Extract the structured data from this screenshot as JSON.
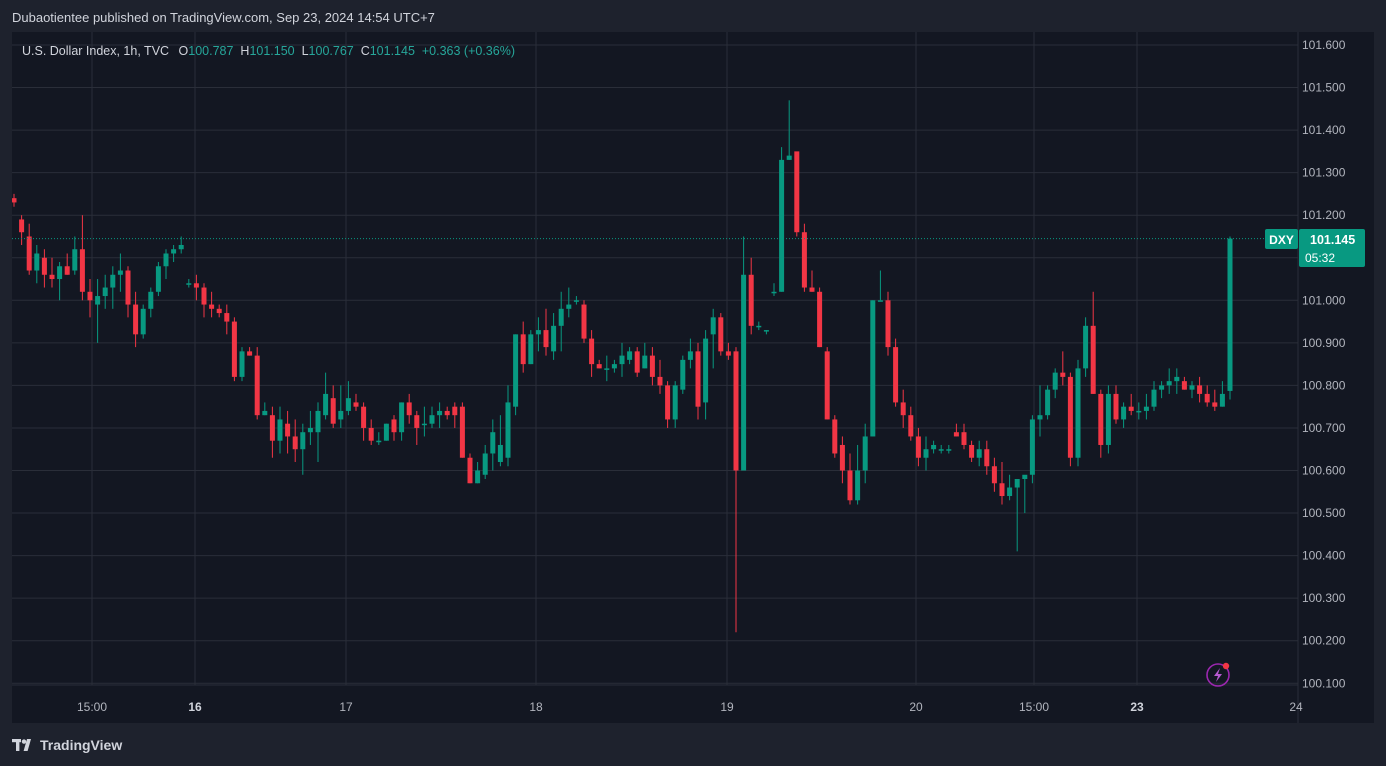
{
  "caption": "Dubaotientee published on TradingView.com, Sep 23, 2024 14:54 UTC+7",
  "legend": {
    "symbol": "U.S. Dollar Index, 1h, TVC",
    "o_label": "O",
    "o_value": "100.787",
    "h_label": "H",
    "h_value": "101.150",
    "l_label": "L",
    "l_value": "100.767",
    "c_label": "C",
    "c_value": "101.145",
    "change": "+0.363 (+0.36%)"
  },
  "price_tag": {
    "symbol": "DXY",
    "price": "101.145",
    "countdown": "05:32"
  },
  "brand": "TradingView",
  "icons": [
    "tradingview-logo-icon",
    "lightning-icon"
  ],
  "colors": {
    "up": "#089981",
    "down": "#f23645",
    "background": "#131722",
    "outer": "#1e222d",
    "grid": "#2a2e39",
    "text": "#b2b5be"
  },
  "chart_data": {
    "type": "candlestick",
    "title": "U.S. Dollar Index, 1h, TVC",
    "ylim": [
      100.1,
      101.65
    ],
    "y_ticks": [
      "101.600",
      "101.500",
      "101.400",
      "101.300",
      "101.200",
      "101.100",
      "101.000",
      "100.900",
      "100.800",
      "100.700",
      "100.600",
      "100.500",
      "100.400",
      "100.300",
      "100.200",
      "100.100"
    ],
    "x_ticks": [
      {
        "label": "15:00",
        "bold": false
      },
      {
        "label": "16",
        "bold": true
      },
      {
        "label": "17",
        "bold": false
      },
      {
        "label": "18",
        "bold": false
      },
      {
        "label": "19",
        "bold": false
      },
      {
        "label": "20",
        "bold": false
      },
      {
        "label": "15:00",
        "bold": false
      },
      {
        "label": "23",
        "bold": true
      },
      {
        "label": "24",
        "bold": false
      }
    ],
    "last_price": 101.145,
    "grid": true,
    "candles": [
      [
        101.24,
        101.25,
        101.22,
        101.23
      ],
      [
        101.19,
        101.2,
        101.13,
        101.16
      ],
      [
        101.15,
        101.18,
        101.06,
        101.07
      ],
      [
        101.07,
        101.13,
        101.04,
        101.11
      ],
      [
        101.1,
        101.12,
        101.03,
        101.06
      ],
      [
        101.06,
        101.1,
        101.03,
        101.05
      ],
      [
        101.05,
        101.09,
        101.0,
        101.08
      ],
      [
        101.08,
        101.11,
        101.06,
        101.06
      ],
      [
        101.07,
        101.15,
        101.06,
        101.12
      ],
      [
        101.12,
        101.2,
        101.0,
        101.02
      ],
      [
        101.02,
        101.05,
        100.96,
        101.0
      ],
      [
        100.99,
        101.05,
        100.9,
        101.01
      ],
      [
        101.01,
        101.06,
        100.98,
        101.03
      ],
      [
        101.03,
        101.08,
        100.98,
        101.06
      ],
      [
        101.06,
        101.11,
        101.02,
        101.07
      ],
      [
        101.07,
        101.08,
        100.96,
        100.99
      ],
      [
        100.99,
        101.02,
        100.89,
        100.92
      ],
      [
        100.92,
        100.99,
        100.91,
        100.98
      ],
      [
        100.98,
        101.03,
        100.96,
        101.02
      ],
      [
        101.02,
        101.09,
        101.01,
        101.08
      ],
      [
        101.08,
        101.12,
        101.05,
        101.11
      ],
      [
        101.11,
        101.13,
        101.09,
        101.12
      ],
      [
        101.12,
        101.15,
        101.11,
        101.13
      ],
      [
        101.04,
        101.05,
        101.03,
        101.04
      ],
      [
        101.04,
        101.06,
        101.0,
        101.03
      ],
      [
        101.03,
        101.04,
        100.96,
        100.99
      ],
      [
        100.99,
        101.02,
        100.96,
        100.98
      ],
      [
        100.98,
        100.99,
        100.96,
        100.97
      ],
      [
        100.97,
        100.99,
        100.92,
        100.95
      ],
      [
        100.95,
        100.96,
        100.81,
        100.82
      ],
      [
        100.82,
        100.89,
        100.81,
        100.88
      ],
      [
        100.88,
        100.89,
        100.87,
        100.87
      ],
      [
        100.87,
        100.89,
        100.72,
        100.73
      ],
      [
        100.73,
        100.76,
        100.73,
        100.74
      ],
      [
        100.73,
        100.75,
        100.63,
        100.67
      ],
      [
        100.67,
        100.75,
        100.64,
        100.72
      ],
      [
        100.71,
        100.74,
        100.64,
        100.68
      ],
      [
        100.68,
        100.72,
        100.62,
        100.65
      ],
      [
        100.65,
        100.71,
        100.59,
        100.69
      ],
      [
        100.69,
        100.74,
        100.66,
        100.7
      ],
      [
        100.69,
        100.76,
        100.62,
        100.74
      ],
      [
        100.73,
        100.83,
        100.72,
        100.78
      ],
      [
        100.77,
        100.8,
        100.7,
        100.71
      ],
      [
        100.72,
        100.8,
        100.7,
        100.74
      ],
      [
        100.74,
        100.81,
        100.73,
        100.77
      ],
      [
        100.76,
        100.78,
        100.74,
        100.75
      ],
      [
        100.75,
        100.76,
        100.67,
        100.7
      ],
      [
        100.7,
        100.72,
        100.66,
        100.67
      ],
      [
        100.67,
        100.69,
        100.66,
        100.67
      ],
      [
        100.67,
        100.71,
        100.67,
        100.71
      ],
      [
        100.72,
        100.73,
        100.67,
        100.69
      ],
      [
        100.69,
        100.76,
        100.67,
        100.76
      ],
      [
        100.76,
        100.78,
        100.71,
        100.73
      ],
      [
        100.73,
        100.74,
        100.66,
        100.7
      ],
      [
        100.71,
        100.75,
        100.68,
        100.71
      ],
      [
        100.71,
        100.75,
        100.7,
        100.73
      ],
      [
        100.73,
        100.76,
        100.7,
        100.74
      ],
      [
        100.74,
        100.75,
        100.72,
        100.73
      ],
      [
        100.75,
        100.76,
        100.7,
        100.73
      ],
      [
        100.75,
        100.76,
        100.63,
        100.63
      ],
      [
        100.63,
        100.64,
        100.57,
        100.57
      ],
      [
        100.57,
        100.62,
        100.57,
        100.6
      ],
      [
        100.59,
        100.66,
        100.58,
        100.64
      ],
      [
        100.64,
        100.72,
        100.6,
        100.69
      ],
      [
        100.62,
        100.73,
        100.61,
        100.66
      ],
      [
        100.63,
        100.8,
        100.61,
        100.76
      ],
      [
        100.75,
        100.92,
        100.73,
        100.92
      ],
      [
        100.92,
        100.95,
        100.83,
        100.85
      ],
      [
        100.85,
        100.93,
        100.85,
        100.92
      ],
      [
        100.92,
        100.96,
        100.88,
        100.93
      ],
      [
        100.93,
        100.98,
        100.87,
        100.89
      ],
      [
        100.88,
        100.97,
        100.86,
        100.94
      ],
      [
        100.94,
        101.02,
        100.88,
        100.98
      ],
      [
        100.98,
        101.03,
        100.96,
        100.99
      ],
      [
        101.0,
        101.01,
        100.99,
        101.0
      ],
      [
        100.99,
        101.0,
        100.9,
        100.91
      ],
      [
        100.91,
        100.93,
        100.82,
        100.85
      ],
      [
        100.85,
        100.86,
        100.84,
        100.84
      ],
      [
        100.84,
        100.87,
        100.81,
        100.84
      ],
      [
        100.84,
        100.86,
        100.83,
        100.85
      ],
      [
        100.85,
        100.9,
        100.82,
        100.87
      ],
      [
        100.86,
        100.89,
        100.85,
        100.88
      ],
      [
        100.88,
        100.89,
        100.82,
        100.83
      ],
      [
        100.84,
        100.9,
        100.84,
        100.87
      ],
      [
        100.87,
        100.89,
        100.8,
        100.82
      ],
      [
        100.82,
        100.86,
        100.78,
        100.8
      ],
      [
        100.8,
        100.81,
        100.7,
        100.72
      ],
      [
        100.72,
        100.81,
        100.7,
        100.8
      ],
      [
        100.79,
        100.87,
        100.78,
        100.86
      ],
      [
        100.86,
        100.91,
        100.84,
        100.88
      ],
      [
        100.88,
        100.9,
        100.72,
        100.75
      ],
      [
        100.76,
        100.93,
        100.72,
        100.91
      ],
      [
        100.92,
        100.98,
        100.84,
        100.96
      ],
      [
        100.96,
        100.97,
        100.87,
        100.88
      ],
      [
        100.88,
        100.9,
        100.86,
        100.87
      ],
      [
        100.88,
        100.89,
        100.22,
        100.6
      ],
      [
        100.6,
        101.15,
        100.6,
        101.06
      ],
      [
        101.06,
        101.1,
        100.92,
        100.94
      ],
      [
        100.94,
        100.95,
        100.93,
        100.94
      ],
      [
        100.93,
        100.93,
        100.92,
        100.93
      ],
      [
        101.02,
        101.04,
        101.01,
        101.02
      ],
      [
        101.02,
        101.36,
        101.02,
        101.33
      ],
      [
        101.33,
        101.47,
        101.33,
        101.34
      ],
      [
        101.35,
        101.34,
        101.15,
        101.16
      ],
      [
        101.16,
        101.18,
        101.02,
        101.03
      ],
      [
        101.03,
        101.07,
        101.02,
        101.02
      ],
      [
        101.02,
        101.03,
        100.89,
        100.89
      ],
      [
        100.88,
        100.89,
        100.72,
        100.72
      ],
      [
        100.72,
        100.73,
        100.63,
        100.64
      ],
      [
        100.66,
        100.68,
        100.57,
        100.6
      ],
      [
        100.6,
        100.64,
        100.52,
        100.53
      ],
      [
        100.53,
        100.66,
        100.52,
        100.6
      ],
      [
        100.6,
        100.71,
        100.57,
        100.68
      ],
      [
        100.68,
        101.0,
        100.68,
        101.0
      ],
      [
        101.0,
        101.07,
        101.0,
        101.0
      ],
      [
        101.0,
        101.02,
        100.87,
        100.89
      ],
      [
        100.89,
        100.91,
        100.75,
        100.76
      ],
      [
        100.76,
        100.79,
        100.7,
        100.73
      ],
      [
        100.73,
        100.75,
        100.67,
        100.68
      ],
      [
        100.68,
        100.7,
        100.61,
        100.63
      ],
      [
        100.63,
        100.68,
        100.6,
        100.65
      ],
      [
        100.65,
        100.67,
        100.64,
        100.66
      ],
      [
        100.65,
        100.66,
        100.64,
        100.65
      ],
      [
        100.65,
        100.66,
        100.64,
        100.65
      ],
      [
        100.69,
        100.71,
        100.68,
        100.68
      ],
      [
        100.69,
        100.71,
        100.65,
        100.66
      ],
      [
        100.66,
        100.67,
        100.62,
        100.63
      ],
      [
        100.63,
        100.67,
        100.61,
        100.65
      ],
      [
        100.65,
        100.67,
        100.59,
        100.61
      ],
      [
        100.61,
        100.63,
        100.55,
        100.57
      ],
      [
        100.57,
        100.62,
        100.52,
        100.54
      ],
      [
        100.54,
        100.59,
        100.53,
        100.56
      ],
      [
        100.56,
        100.58,
        100.41,
        100.58
      ],
      [
        100.58,
        100.58,
        100.5,
        100.59
      ],
      [
        100.59,
        100.73,
        100.57,
        100.72
      ],
      [
        100.72,
        100.8,
        100.68,
        100.73
      ],
      [
        100.73,
        100.8,
        100.72,
        100.79
      ],
      [
        100.79,
        100.84,
        100.77,
        100.83
      ],
      [
        100.83,
        100.88,
        100.8,
        100.82
      ],
      [
        100.82,
        100.83,
        100.61,
        100.63
      ],
      [
        100.63,
        100.86,
        100.61,
        100.84
      ],
      [
        100.84,
        100.96,
        100.82,
        100.94
      ],
      [
        100.94,
        101.02,
        100.78,
        100.78
      ],
      [
        100.78,
        100.79,
        100.63,
        100.66
      ],
      [
        100.66,
        100.8,
        100.64,
        100.78
      ],
      [
        100.78,
        100.8,
        100.71,
        100.72
      ],
      [
        100.72,
        100.76,
        100.7,
        100.75
      ],
      [
        100.75,
        100.78,
        100.73,
        100.74
      ],
      [
        100.74,
        100.76,
        100.72,
        100.74
      ],
      [
        100.74,
        100.78,
        100.72,
        100.75
      ],
      [
        100.75,
        100.81,
        100.74,
        100.79
      ],
      [
        100.79,
        100.81,
        100.77,
        100.8
      ],
      [
        100.8,
        100.84,
        100.78,
        100.81
      ],
      [
        100.81,
        100.84,
        100.78,
        100.82
      ],
      [
        100.81,
        100.82,
        100.79,
        100.79
      ],
      [
        100.79,
        100.81,
        100.77,
        100.8
      ],
      [
        100.8,
        100.82,
        100.76,
        100.78
      ],
      [
        100.78,
        100.8,
        100.75,
        100.76
      ],
      [
        100.76,
        100.79,
        100.74,
        100.75
      ],
      [
        100.75,
        100.81,
        100.75,
        100.78
      ],
      [
        100.787,
        101.15,
        100.767,
        101.145
      ]
    ]
  }
}
